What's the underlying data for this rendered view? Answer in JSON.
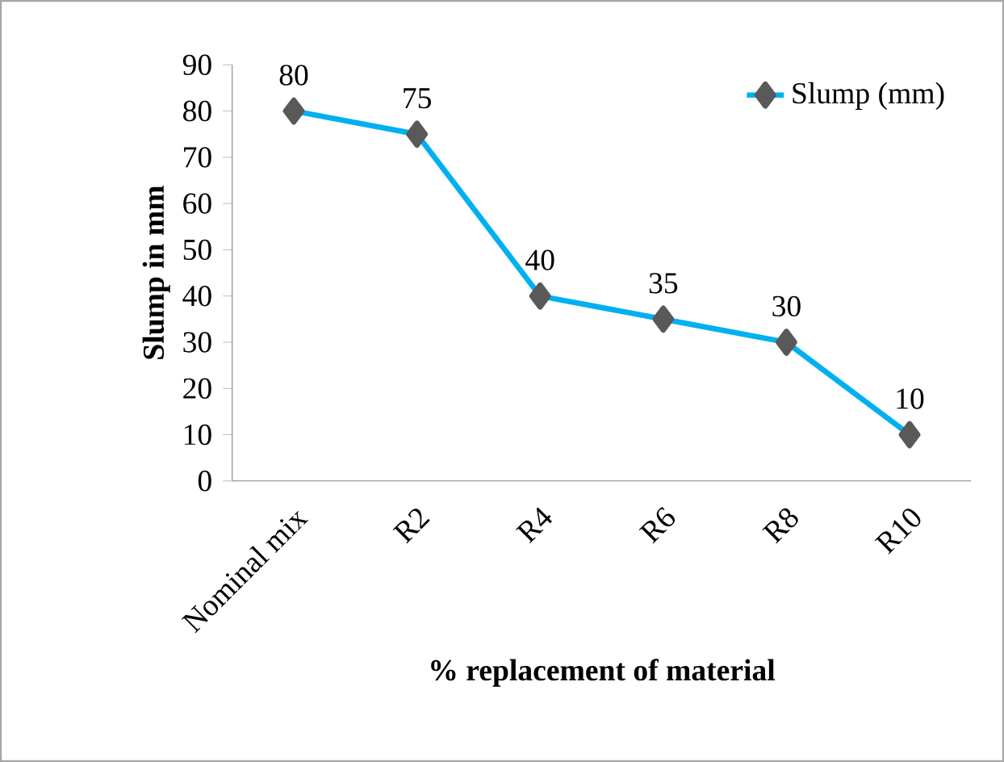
{
  "chart_data": {
    "type": "line",
    "xlabel": "% replacement of material",
    "ylabel": "Slump in mm",
    "categories": [
      "Nominal mix",
      "R2",
      "R4",
      "R6",
      "R8",
      "R10"
    ],
    "series": [
      {
        "name": "Slump (mm)",
        "color": "#00b0f0",
        "values": [
          80,
          75,
          40,
          35,
          30,
          10
        ]
      }
    ],
    "ylim": [
      0,
      90
    ],
    "yticks": [
      0,
      10,
      20,
      30,
      40,
      50,
      60,
      70,
      80,
      90
    ],
    "marker": "diamond",
    "legend": "top right",
    "data_labels": true,
    "grid": false
  }
}
